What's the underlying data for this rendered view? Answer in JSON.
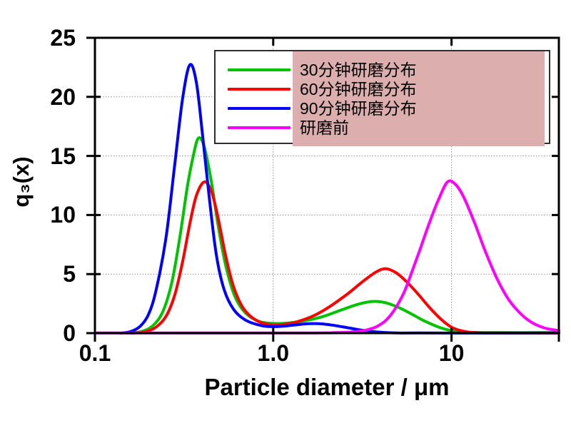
{
  "chart_data": {
    "type": "line",
    "title": "",
    "xlabel": "Particle diameter / μm",
    "ylabel": "q₃(x)",
    "x_scale": "log",
    "xlim": [
      0.1,
      40
    ],
    "ylim": [
      0,
      25
    ],
    "grid": true,
    "grid_x_values": [
      1,
      10
    ],
    "grid_y_values": [
      5,
      10,
      15,
      20
    ],
    "x_ticks": [
      {
        "label": "0.1",
        "value": 0.1
      },
      {
        "label": "1.0",
        "value": 1
      },
      {
        "label": "10",
        "value": 10
      }
    ],
    "y_ticks": [
      {
        "label": "0",
        "value": 0
      },
      {
        "label": "5",
        "value": 5
      },
      {
        "label": "10",
        "value": 10
      },
      {
        "label": "15",
        "value": 15
      },
      {
        "label": "20",
        "value": 20
      },
      {
        "label": "25",
        "value": 25
      }
    ],
    "legend_position": "top-center",
    "series": [
      {
        "name": "30分钟研磨分布",
        "color": "#00c400",
        "peaks": [
          {
            "x_um": 0.38,
            "q3": 16.5
          },
          {
            "x_um": 3.7,
            "q3": 2.7
          }
        ],
        "points": [
          [
            0.15,
            0
          ],
          [
            0.18,
            0.12
          ],
          [
            0.21,
            0.6
          ],
          [
            0.24,
            1.8
          ],
          [
            0.27,
            4.3
          ],
          [
            0.3,
            8.2
          ],
          [
            0.33,
            12.4
          ],
          [
            0.355,
            14.9
          ],
          [
            0.38,
            16.5
          ],
          [
            0.41,
            15.8
          ],
          [
            0.45,
            12.8
          ],
          [
            0.49,
            9.2
          ],
          [
            0.54,
            5.8
          ],
          [
            0.61,
            3.1
          ],
          [
            0.7,
            1.7
          ],
          [
            0.83,
            1.0
          ],
          [
            1.0,
            0.82
          ],
          [
            1.2,
            0.85
          ],
          [
            1.5,
            1.05
          ],
          [
            1.9,
            1.4
          ],
          [
            2.4,
            1.95
          ],
          [
            3.0,
            2.45
          ],
          [
            3.6,
            2.68
          ],
          [
            4.2,
            2.6
          ],
          [
            5.0,
            2.2
          ],
          [
            6.0,
            1.6
          ],
          [
            7.0,
            1.05
          ],
          [
            8.5,
            0.5
          ],
          [
            10,
            0.22
          ],
          [
            12,
            0.08
          ],
          [
            15,
            0.05
          ],
          [
            20,
            0.04
          ],
          [
            30,
            0.04
          ],
          [
            40,
            0.04
          ]
        ]
      },
      {
        "name": "60分钟研磨分布",
        "color": "#ff0000",
        "peaks": [
          {
            "x_um": 0.41,
            "q3": 12.8
          },
          {
            "x_um": 4.3,
            "q3": 5.45
          }
        ],
        "points": [
          [
            0.16,
            0
          ],
          [
            0.19,
            0.1
          ],
          [
            0.22,
            0.5
          ],
          [
            0.25,
            1.4
          ],
          [
            0.28,
            3.2
          ],
          [
            0.31,
            6.0
          ],
          [
            0.34,
            9.2
          ],
          [
            0.37,
            11.6
          ],
          [
            0.41,
            12.8
          ],
          [
            0.45,
            12.0
          ],
          [
            0.49,
            9.8
          ],
          [
            0.54,
            6.6
          ],
          [
            0.6,
            3.9
          ],
          [
            0.68,
            2.1
          ],
          [
            0.8,
            1.1
          ],
          [
            0.95,
            0.72
          ],
          [
            1.1,
            0.7
          ],
          [
            1.35,
            0.95
          ],
          [
            1.7,
            1.5
          ],
          [
            2.1,
            2.3
          ],
          [
            2.6,
            3.3
          ],
          [
            3.2,
            4.4
          ],
          [
            3.8,
            5.2
          ],
          [
            4.3,
            5.45
          ],
          [
            4.9,
            5.1
          ],
          [
            5.6,
            4.35
          ],
          [
            6.5,
            3.3
          ],
          [
            7.5,
            2.2
          ],
          [
            8.7,
            1.2
          ],
          [
            10,
            0.5
          ],
          [
            11.5,
            0.18
          ],
          [
            13,
            0.06
          ],
          [
            15,
            0.02
          ],
          [
            18,
            0.01
          ],
          [
            40,
            0.01
          ]
        ]
      },
      {
        "name": "90分钟研磨分布",
        "color": "#0000ff",
        "peaks": [
          {
            "x_um": 0.34,
            "q3": 22.7
          }
        ],
        "points": [
          [
            0.14,
            0
          ],
          [
            0.16,
            0.15
          ],
          [
            0.18,
            0.6
          ],
          [
            0.2,
            1.6
          ],
          [
            0.22,
            3.6
          ],
          [
            0.25,
            8.0
          ],
          [
            0.28,
            14.2
          ],
          [
            0.31,
            19.8
          ],
          [
            0.34,
            22.7
          ],
          [
            0.37,
            21.3
          ],
          [
            0.4,
            17.0
          ],
          [
            0.44,
            11.2
          ],
          [
            0.48,
            6.6
          ],
          [
            0.53,
            3.7
          ],
          [
            0.6,
            2.0
          ],
          [
            0.7,
            1.1
          ],
          [
            0.85,
            0.65
          ],
          [
            1.0,
            0.55
          ],
          [
            1.2,
            0.62
          ],
          [
            1.5,
            0.78
          ],
          [
            1.8,
            0.8
          ],
          [
            2.2,
            0.65
          ],
          [
            2.7,
            0.42
          ],
          [
            3.3,
            0.2
          ],
          [
            4.0,
            0.08
          ],
          [
            5.0,
            0.02
          ],
          [
            6.5,
            0.01
          ],
          [
            40,
            0.01
          ]
        ]
      },
      {
        "name": "研磨前",
        "color": "#ff00ff",
        "peaks": [
          {
            "x_um": 9.5,
            "q3": 12.8
          }
        ],
        "points": [
          [
            0.1,
            0.02
          ],
          [
            1.5,
            0.02
          ],
          [
            2.2,
            0.04
          ],
          [
            2.8,
            0.1
          ],
          [
            3.3,
            0.25
          ],
          [
            3.8,
            0.55
          ],
          [
            4.3,
            1.1
          ],
          [
            4.8,
            2.0
          ],
          [
            5.4,
            3.4
          ],
          [
            6.0,
            5.2
          ],
          [
            6.7,
            7.2
          ],
          [
            7.5,
            9.3
          ],
          [
            8.4,
            11.2
          ],
          [
            9.5,
            12.8
          ],
          [
            10.6,
            12.55
          ],
          [
            11.8,
            11.4
          ],
          [
            13.5,
            9.3
          ],
          [
            15.5,
            6.9
          ],
          [
            18,
            4.6
          ],
          [
            21,
            2.8
          ],
          [
            25,
            1.5
          ],
          [
            29,
            0.8
          ],
          [
            34,
            0.4
          ],
          [
            40,
            0.22
          ]
        ]
      }
    ]
  },
  "legend": {
    "items": [
      {
        "label": "30分钟研磨分布",
        "color": "#00c400"
      },
      {
        "label": "60分钟研磨分布",
        "color": "#ff0000"
      },
      {
        "label": "90分钟研磨分布",
        "color": "#0000ff"
      },
      {
        "label": "研磨前",
        "color": "#ff00ff"
      }
    ],
    "highlight_color": "#dcaeae",
    "border_color": "#2e2e2e"
  },
  "style_colors": {
    "axis": "#000000",
    "grid": "#8c8c8c",
    "background": "#ffffff"
  }
}
